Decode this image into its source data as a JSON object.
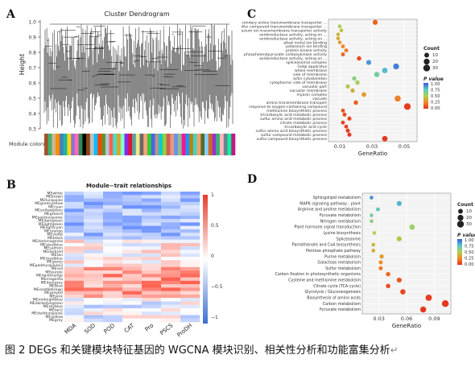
{
  "panels": {
    "A": {
      "letter": "A",
      "title": "Cluster Dendrogram",
      "ylabel": "Height",
      "yticks": [
        "1.0",
        "0.9",
        "0.8",
        "0.7",
        "0.6",
        "0.5",
        "0.4",
        "0.3"
      ],
      "module_colors_label": "Module colors",
      "module_colors": [
        "#a0522d",
        "#3cb371",
        "#d2b48c",
        "#ff8c00",
        "#4682b4",
        "#20b2aa",
        "#ffd700",
        "#9370db",
        "#ff69b4",
        "#2e8b57",
        "#000000",
        "#8b4513",
        "#c0c0c0",
        "#00bfff",
        "#ff4500",
        "#6b8e23",
        "#b0c4de",
        "#ff6347",
        "#40e0d0",
        "#daa520",
        "#7fffd4",
        "#8a2be2",
        "#dc143c",
        "#5f9ea0",
        "#f0e68c",
        "#696969",
        "#ffa07a",
        "#32cd32",
        "#4169e1",
        "#bc8f8f",
        "#00ced1",
        "#9acd32",
        "#cd5c5c",
        "#e9967a",
        "#6495ed",
        "#8fbc8f",
        "#ff1493",
        "#1e90ff",
        "#b8860b",
        "#48d1cc",
        "#f4a460",
        "#556b2f",
        "#87cefa",
        "#d2691e",
        "#9932cc",
        "#3cb371",
        "#ffb6c1",
        "#708090",
        "#00fa9a",
        "#c71585"
      ]
    },
    "B": {
      "letter": "B",
      "title": "Module−trait relationships",
      "modules": [
        "MEwhite",
        "MEbrown",
        "MEturquoise",
        "MEgreenyellow",
        "MEcyan",
        "MEyellowgreen",
        "MEgreen4",
        "MEpaleturquoise",
        "MEdarkgreen",
        "MElightgreen",
        "MElightcyan",
        "MEorange",
        "MEviolet",
        "MEblack",
        "MEdarkmagenta",
        "MEsteelblue",
        "MEsalmon",
        "MEdarkred",
        "MEtan",
        "MEroyalblue",
        "MEgreen",
        "MEpaleturquoise2",
        "MEred",
        "MEpurple",
        "MEdarkorange",
        "MEmagenta",
        "MEdarkgrey",
        "MEblue",
        "MEsaddlebrown",
        "MEgrey60",
        "MEpink",
        "MEmidnightblue",
        "MEdarkolivegreen",
        "MEskyblue",
        "MEtan2",
        "MEdarkturquoise",
        "MEyellow",
        "MEgrey"
      ],
      "traits": [
        "MDA",
        "SOD",
        "POD",
        "CAT",
        "Pro",
        "PSCS",
        "ProDH"
      ],
      "colorbar_ticks": [
        "1",
        "0.5",
        "0",
        "−0.5",
        "−1"
      ]
    },
    "C": {
      "letter": "C",
      "xlabel": "GeneRatio",
      "xticks": [
        "0.01",
        "0.03",
        "0.05"
      ],
      "terms": [
        {
          "label": "secondary active transmembrane transporter ...",
          "ratio": 0.032,
          "count": 12,
          "p": 0.14
        },
        {
          "label": "sulfur compound transmembrane transporter ...",
          "ratio": 0.01,
          "count": 4,
          "p": 0.48
        },
        {
          "label": "magnesium ion transmembrane transporter activity",
          "ratio": 0.011,
          "count": 4,
          "p": 0.42
        },
        {
          "label": "oxidoreductase activity, acting on ...",
          "ratio": 0.009,
          "count": 4,
          "p": 0.4
        },
        {
          "label": "oxidoreductase activity, acting on ...",
          "ratio": 0.009,
          "count": 4,
          "p": 0.35
        },
        {
          "label": "alkali metal ion binding",
          "ratio": 0.01,
          "count": 4,
          "p": 0.3
        },
        {
          "label": "potassium ion binding",
          "ratio": 0.012,
          "count": 5,
          "p": 0.24
        },
        {
          "label": "protein kinase activity",
          "ratio": 0.014,
          "count": 5,
          "p": 0.2
        },
        {
          "label": "phosphoenolpyruvate carboxykinase activity",
          "ratio": 0.012,
          "count": 5,
          "p": 0.14
        },
        {
          "label": "oxidoreductase activity, acting on ...",
          "ratio": 0.022,
          "count": 8,
          "p": 0.06
        },
        {
          "label": "spliceosomal complex",
          "ratio": 0.028,
          "count": 12,
          "p": 0.86
        },
        {
          "label": "Golgi apparatus",
          "ratio": 0.045,
          "count": 20,
          "p": 0.92
        },
        {
          "label": "whole membrane",
          "ratio": 0.038,
          "count": 16,
          "p": 0.78
        },
        {
          "label": "side of membrane",
          "ratio": 0.033,
          "count": 14,
          "p": 0.66
        },
        {
          "label": "actin cytoskeleton",
          "ratio": 0.019,
          "count": 7,
          "p": 0.6
        },
        {
          "label": "cytoplasmic side of membrane",
          "ratio": 0.021,
          "count": 8,
          "p": 0.52
        },
        {
          "label": "vacuolar part",
          "ratio": 0.015,
          "count": 6,
          "p": 0.45
        },
        {
          "label": "vacuolar membrane",
          "ratio": 0.018,
          "count": 7,
          "p": 0.37
        },
        {
          "label": "myosin complex",
          "ratio": 0.025,
          "count": 10,
          "p": 0.31
        },
        {
          "label": "vacuole",
          "ratio": 0.046,
          "count": 22,
          "p": 0.22
        },
        {
          "label": "amino transmembrane transport",
          "ratio": 0.02,
          "count": 8,
          "p": 0.12
        },
        {
          "label": "response to oxygen-containing compound",
          "ratio": 0.052,
          "count": 28,
          "p": 0.03
        },
        {
          "label": "methionine biosynthetic process",
          "ratio": 0.012,
          "count": 5,
          "p": 0.09
        },
        {
          "label": "tricarboxylic acid metabolic process",
          "ratio": 0.013,
          "count": 5,
          "p": 0.07
        },
        {
          "label": "sulfur amino acid metabolic process",
          "ratio": 0.016,
          "count": 6,
          "p": 0.05
        },
        {
          "label": "citrate metabolic process",
          "ratio": 0.012,
          "count": 5,
          "p": 0.04
        },
        {
          "label": "tricarboxylic acid cycle",
          "ratio": 0.014,
          "count": 5,
          "p": 0.035
        },
        {
          "label": "sulfur amino acid biosynthetic process",
          "ratio": 0.015,
          "count": 6,
          "p": 0.025
        },
        {
          "label": "sulfur compound metabolic process",
          "ratio": 0.016,
          "count": 6,
          "p": 0.02
        },
        {
          "label": "sulfur compound biosynthetic process",
          "ratio": 0.038,
          "count": 16,
          "p": 0.01
        }
      ],
      "legend_count_title": "Count",
      "legend_count": [
        "10",
        "20",
        "30"
      ],
      "legend_p_title": "P value",
      "legend_p_ticks": [
        "1.00",
        "0.75",
        "0.50",
        "0.25",
        "0.00"
      ]
    },
    "D": {
      "letter": "D",
      "xlabel": "GeneRatio",
      "xticks": [
        "0.03",
        "0.06",
        "0.09"
      ],
      "terms": [
        {
          "label": "Sphingolipid metabolism",
          "ratio": 0.022,
          "count": 4,
          "p": 0.88
        },
        {
          "label": "MAPK signaling pathway - plant",
          "ratio": 0.052,
          "count": 12,
          "p": 0.8
        },
        {
          "label": "Arginine and proline metabolism",
          "ratio": 0.029,
          "count": 6,
          "p": 0.72
        },
        {
          "label": "Pyruvate metabolism",
          "ratio": 0.022,
          "count": 4,
          "p": 0.66
        },
        {
          "label": "Nitrogen metabolism",
          "ratio": 0.022,
          "count": 4,
          "p": 0.6
        },
        {
          "label": "Plant hormone signal transduction",
          "ratio": 0.066,
          "count": 15,
          "p": 0.55
        },
        {
          "label": "Lysine biosynthesis",
          "ratio": 0.025,
          "count": 4,
          "p": 0.5
        },
        {
          "label": "Spliceosome",
          "ratio": 0.052,
          "count": 12,
          "p": 0.45
        },
        {
          "label": "Pantothenate and CoA biosynthesis",
          "ratio": 0.024,
          "count": 4,
          "p": 0.4
        },
        {
          "label": "Pentose phosphate pathway",
          "ratio": 0.024,
          "count": 4,
          "p": 0.35
        },
        {
          "label": "Purine metabolism",
          "ratio": 0.033,
          "count": 7,
          "p": 0.3
        },
        {
          "label": "Galactose metabolism",
          "ratio": 0.032,
          "count": 6,
          "p": 0.25
        },
        {
          "label": "Sulfur metabolism",
          "ratio": 0.032,
          "count": 6,
          "p": 0.2
        },
        {
          "label": "Carbon fixation in photosynthetic organisms",
          "ratio": 0.04,
          "count": 8,
          "p": 0.15
        },
        {
          "label": "Cysteine and methionine metabolism",
          "ratio": 0.052,
          "count": 12,
          "p": 0.1
        },
        {
          "label": "Citrate cycle (TCA cycle)",
          "ratio": 0.04,
          "count": 8,
          "p": 0.07
        },
        {
          "label": "Glycolysis / Gluconeogenesis",
          "ratio": 0.056,
          "count": 14,
          "p": 0.05
        },
        {
          "label": "Biosynthesis of amino acids",
          "ratio": 0.084,
          "count": 24,
          "p": 0.03
        },
        {
          "label": "Carbon metabolism",
          "ratio": 0.102,
          "count": 30,
          "p": 0.01
        },
        {
          "label": "Pyruvate metabolism",
          "ratio": 0.078,
          "count": 22,
          "p": 0.02
        }
      ],
      "legend_count_title": "Count",
      "legend_count": [
        "10",
        "20",
        "30"
      ],
      "legend_p_title": "P value",
      "legend_p_ticks": [
        "1.00",
        "0.75",
        "0.50",
        "0.25",
        "0.00"
      ]
    }
  },
  "caption": "图 2 DEGs 和关键模块特征基因的 WGCNA 模块识别、相关性分析和功能富集分析",
  "return_mark": "↵"
}
